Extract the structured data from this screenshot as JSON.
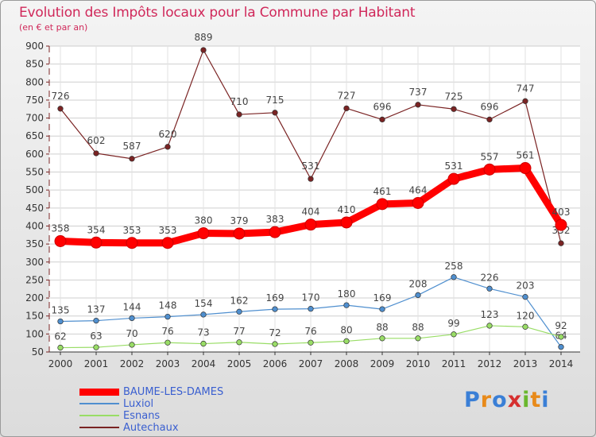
{
  "header": {
    "title": "Evolution des Impôts locaux pour la Commune par Habitant",
    "subtitle": "(en € et par an)"
  },
  "logo": {
    "text": "Proxiti",
    "letters": [
      "P",
      "r",
      "o",
      "x",
      "i",
      "t",
      "i"
    ],
    "colors": [
      "#3a7fd6",
      "#e88a1a",
      "#3a7fd6",
      "#d63030",
      "#6ab72e",
      "#e88a1a",
      "#3a7fd6"
    ]
  },
  "chart_data": {
    "type": "line",
    "x": [
      "2000",
      "2001",
      "2002",
      "2003",
      "2004",
      "2005",
      "2006",
      "2007",
      "2008",
      "2009",
      "2010",
      "2011",
      "2012",
      "2013",
      "2014"
    ],
    "ylim": [
      50,
      900
    ],
    "yticks": [
      50,
      100,
      150,
      200,
      250,
      300,
      350,
      400,
      450,
      500,
      550,
      600,
      650,
      700,
      750,
      800,
      850,
      900
    ],
    "grid": true,
    "legend_position": "bottom-left",
    "series": [
      {
        "name": "BAUME-LES-DAMES",
        "color": "#ff0000",
        "highlight": true,
        "values": [
          358,
          354,
          353,
          353,
          380,
          379,
          383,
          404,
          410,
          461,
          464,
          531,
          557,
          561,
          403
        ]
      },
      {
        "name": "Luxiol",
        "color": "#4f8fcf",
        "values": [
          135,
          137,
          144,
          148,
          154,
          162,
          169,
          170,
          180,
          169,
          208,
          258,
          226,
          203,
          64
        ]
      },
      {
        "name": "Esnans",
        "color": "#99dd66",
        "values": [
          62,
          63,
          70,
          76,
          73,
          77,
          72,
          76,
          80,
          88,
          88,
          99,
          123,
          120,
          92
        ]
      },
      {
        "name": "Autechaux",
        "color": "#7a2323",
        "values": [
          726,
          602,
          587,
          620,
          889,
          710,
          715,
          531,
          727,
          696,
          737,
          725,
          696,
          747,
          352
        ]
      }
    ]
  }
}
